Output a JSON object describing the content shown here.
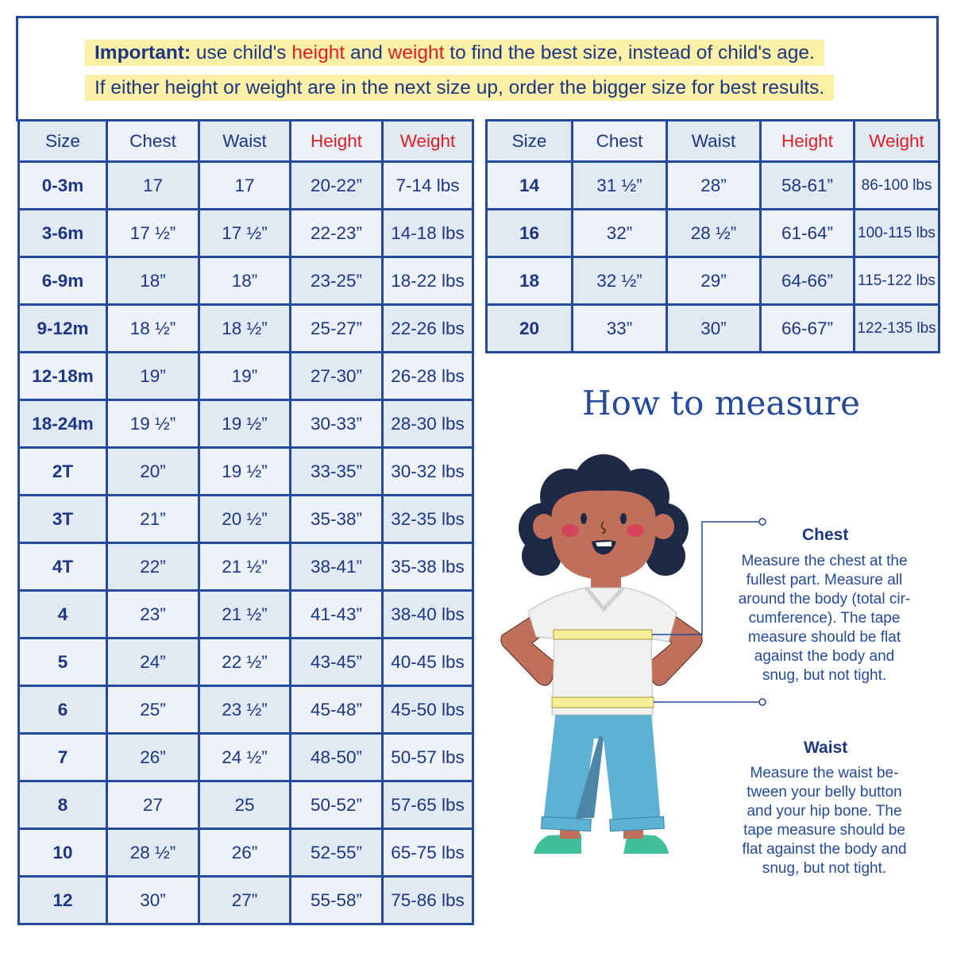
{
  "notice": {
    "line1": {
      "bold": "Important:",
      "part1": " use child's ",
      "height": "height",
      "part2": " and ",
      "weight": "weight",
      "part3": " to find the best size, instead of child's age."
    },
    "line2": "If either height or weight are in the next size up, order the bigger size for best results."
  },
  "colors": {
    "primary": "#1c3683",
    "accent_red": "#e01d25",
    "highlight": "#fbf0a6",
    "border": "#234a9b"
  },
  "table_headers": [
    "Size",
    "Chest",
    "Waist",
    "Height",
    "Weight"
  ],
  "table_left": [
    [
      "0-3m",
      "17",
      "17",
      "20-22”",
      "7-14 lbs"
    ],
    [
      "3-6m",
      "17 ½”",
      "17 ½”",
      "22-23”",
      "14-18 lbs"
    ],
    [
      "6-9m",
      "18”",
      "18”",
      "23-25”",
      "18-22 lbs"
    ],
    [
      "9-12m",
      "18 ½”",
      "18 ½”",
      "25-27”",
      "22-26 lbs"
    ],
    [
      "12-18m",
      "19”",
      "19”",
      "27-30”",
      "26-28 lbs"
    ],
    [
      "18-24m",
      "19 ½”",
      "19 ½”",
      "30-33”",
      "28-30 lbs"
    ],
    [
      "2T",
      "20”",
      "19 ½”",
      "33-35”",
      "30-32 lbs"
    ],
    [
      "3T",
      "21”",
      "20 ½”",
      "35-38”",
      "32-35 lbs"
    ],
    [
      "4T",
      "22”",
      "21 ½”",
      "38-41”",
      "35-38 lbs"
    ],
    [
      "4",
      "23”",
      "21 ½”",
      "41-43”",
      "38-40 lbs"
    ],
    [
      "5",
      "24”",
      "22 ½”",
      "43-45”",
      "40-45 lbs"
    ],
    [
      "6",
      "25”",
      "23 ½”",
      "45-48”",
      "45-50 lbs"
    ],
    [
      "7",
      "26”",
      "24 ½”",
      "48-50”",
      "50-57 lbs"
    ],
    [
      "8",
      "27",
      "25",
      "50-52”",
      "57-65 lbs"
    ],
    [
      "10",
      "28 ½”",
      "26”",
      "52-55”",
      "65-75 lbs"
    ],
    [
      "12",
      "30”",
      "27”",
      "55-58”",
      "75-86 lbs"
    ]
  ],
  "table_right": [
    [
      "14",
      "31 ½”",
      "28”",
      "58-61”",
      "86-100 lbs"
    ],
    [
      "16",
      "32”",
      "28 ½”",
      "61-64”",
      "100-115 lbs"
    ],
    [
      "18",
      "32 ½”",
      "29”",
      "64-66”",
      "115-122 lbs"
    ],
    [
      "20",
      "33”",
      "30”",
      "66-67”",
      "122-135 lbs"
    ]
  ],
  "how_to": {
    "title": "How to measure",
    "chest": {
      "label": "Chest",
      "lines": [
        "Measure the chest at the",
        "fullest part. Measure all",
        "around the body (total cir-",
        "cumference). The tape",
        "measure should be flat",
        "against the body and",
        "snug, but not tight."
      ]
    },
    "waist": {
      "label": "Waist",
      "lines": [
        "Measure the waist be-",
        "tween your belly button",
        "and your hip bone. The",
        "tape measure should be",
        "flat against the body and",
        "snug, but not tight."
      ]
    }
  }
}
